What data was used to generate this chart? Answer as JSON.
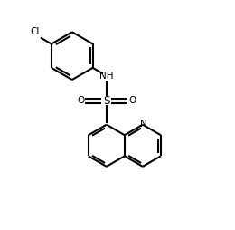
{
  "background_color": "#ffffff",
  "line_color": "#000000",
  "line_width": 1.5,
  "font_size_atoms": 7.5,
  "figsize": [
    2.6,
    2.54
  ],
  "dpi": 100,
  "xlim": [
    0,
    10
  ],
  "ylim": [
    0,
    10
  ]
}
